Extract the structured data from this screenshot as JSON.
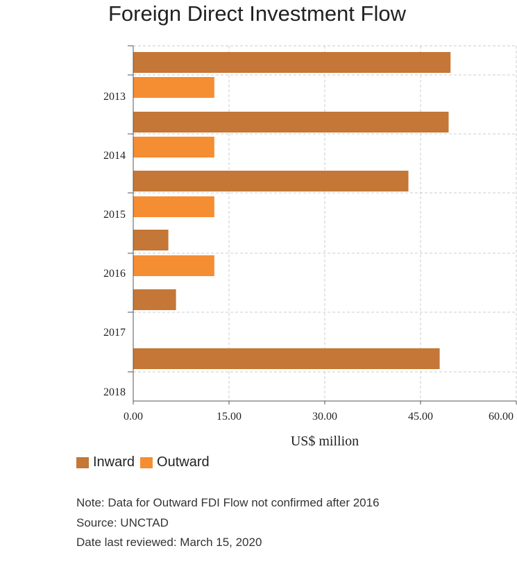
{
  "chart_data": {
    "type": "bar",
    "orientation": "horizontal",
    "title": "Foreign Direct Investment Flow",
    "xlabel": "US$ million",
    "ylabel": "",
    "categories": [
      "2013",
      "2014",
      "2015",
      "2016",
      "2017",
      "2018"
    ],
    "series": [
      {
        "name": "Inward",
        "color": "#c47736",
        "values": [
          49.7,
          49.4,
          43.1,
          5.5,
          6.7,
          48.0
        ]
      },
      {
        "name": "Outward",
        "color": "#f58d33",
        "values": [
          12.7,
          12.7,
          12.7,
          12.7,
          null,
          null
        ]
      }
    ],
    "xlim": [
      0,
      60
    ],
    "x_ticks": [
      "0.00",
      "15.00",
      "30.00",
      "45.00",
      "60.00"
    ],
    "grid": true,
    "legend_position": "bottom-left"
  },
  "notes": {
    "note": "Note: Data for Outward FDI Flow not confirmed after 2016",
    "source": "Source: UNCTAD",
    "reviewed": "Date last reviewed: March 15, 2020"
  }
}
